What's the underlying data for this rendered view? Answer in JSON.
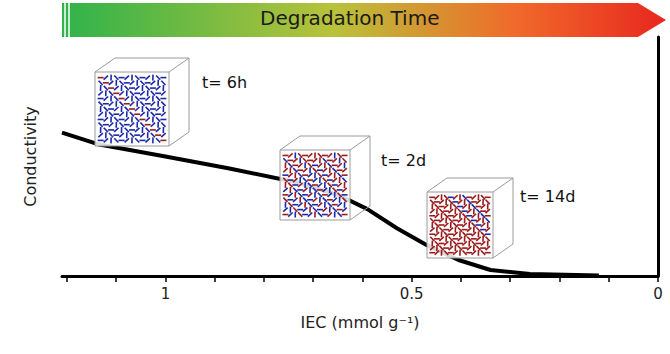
{
  "chart_data": {
    "type": "line",
    "title": "Degradation Time",
    "xlabel": "IEC (mmol g⁻¹)",
    "ylabel": "Conductivity",
    "x": [
      1.21,
      1.134,
      1.0,
      0.87,
      0.73,
      0.65,
      0.59,
      0.53,
      0.47,
      0.405,
      0.34,
      0.26,
      0.12
    ],
    "values": [
      0.6,
      0.55,
      0.5,
      0.45,
      0.39,
      0.34,
      0.28,
      0.2,
      0.13,
      0.067,
      0.025,
      0.008,
      0.002
    ],
    "color": "#000000",
    "xlim": [
      1.21,
      0
    ],
    "ylim": [
      0,
      1
    ],
    "xticks": [
      0,
      0.5,
      1
    ],
    "yticks": [],
    "tick_labels": "x",
    "grid": false,
    "annotations": [
      {
        "text": "t= 6h"
      },
      {
        "text": "t= 2d"
      },
      {
        "text": "t= 14d"
      }
    ]
  }
}
